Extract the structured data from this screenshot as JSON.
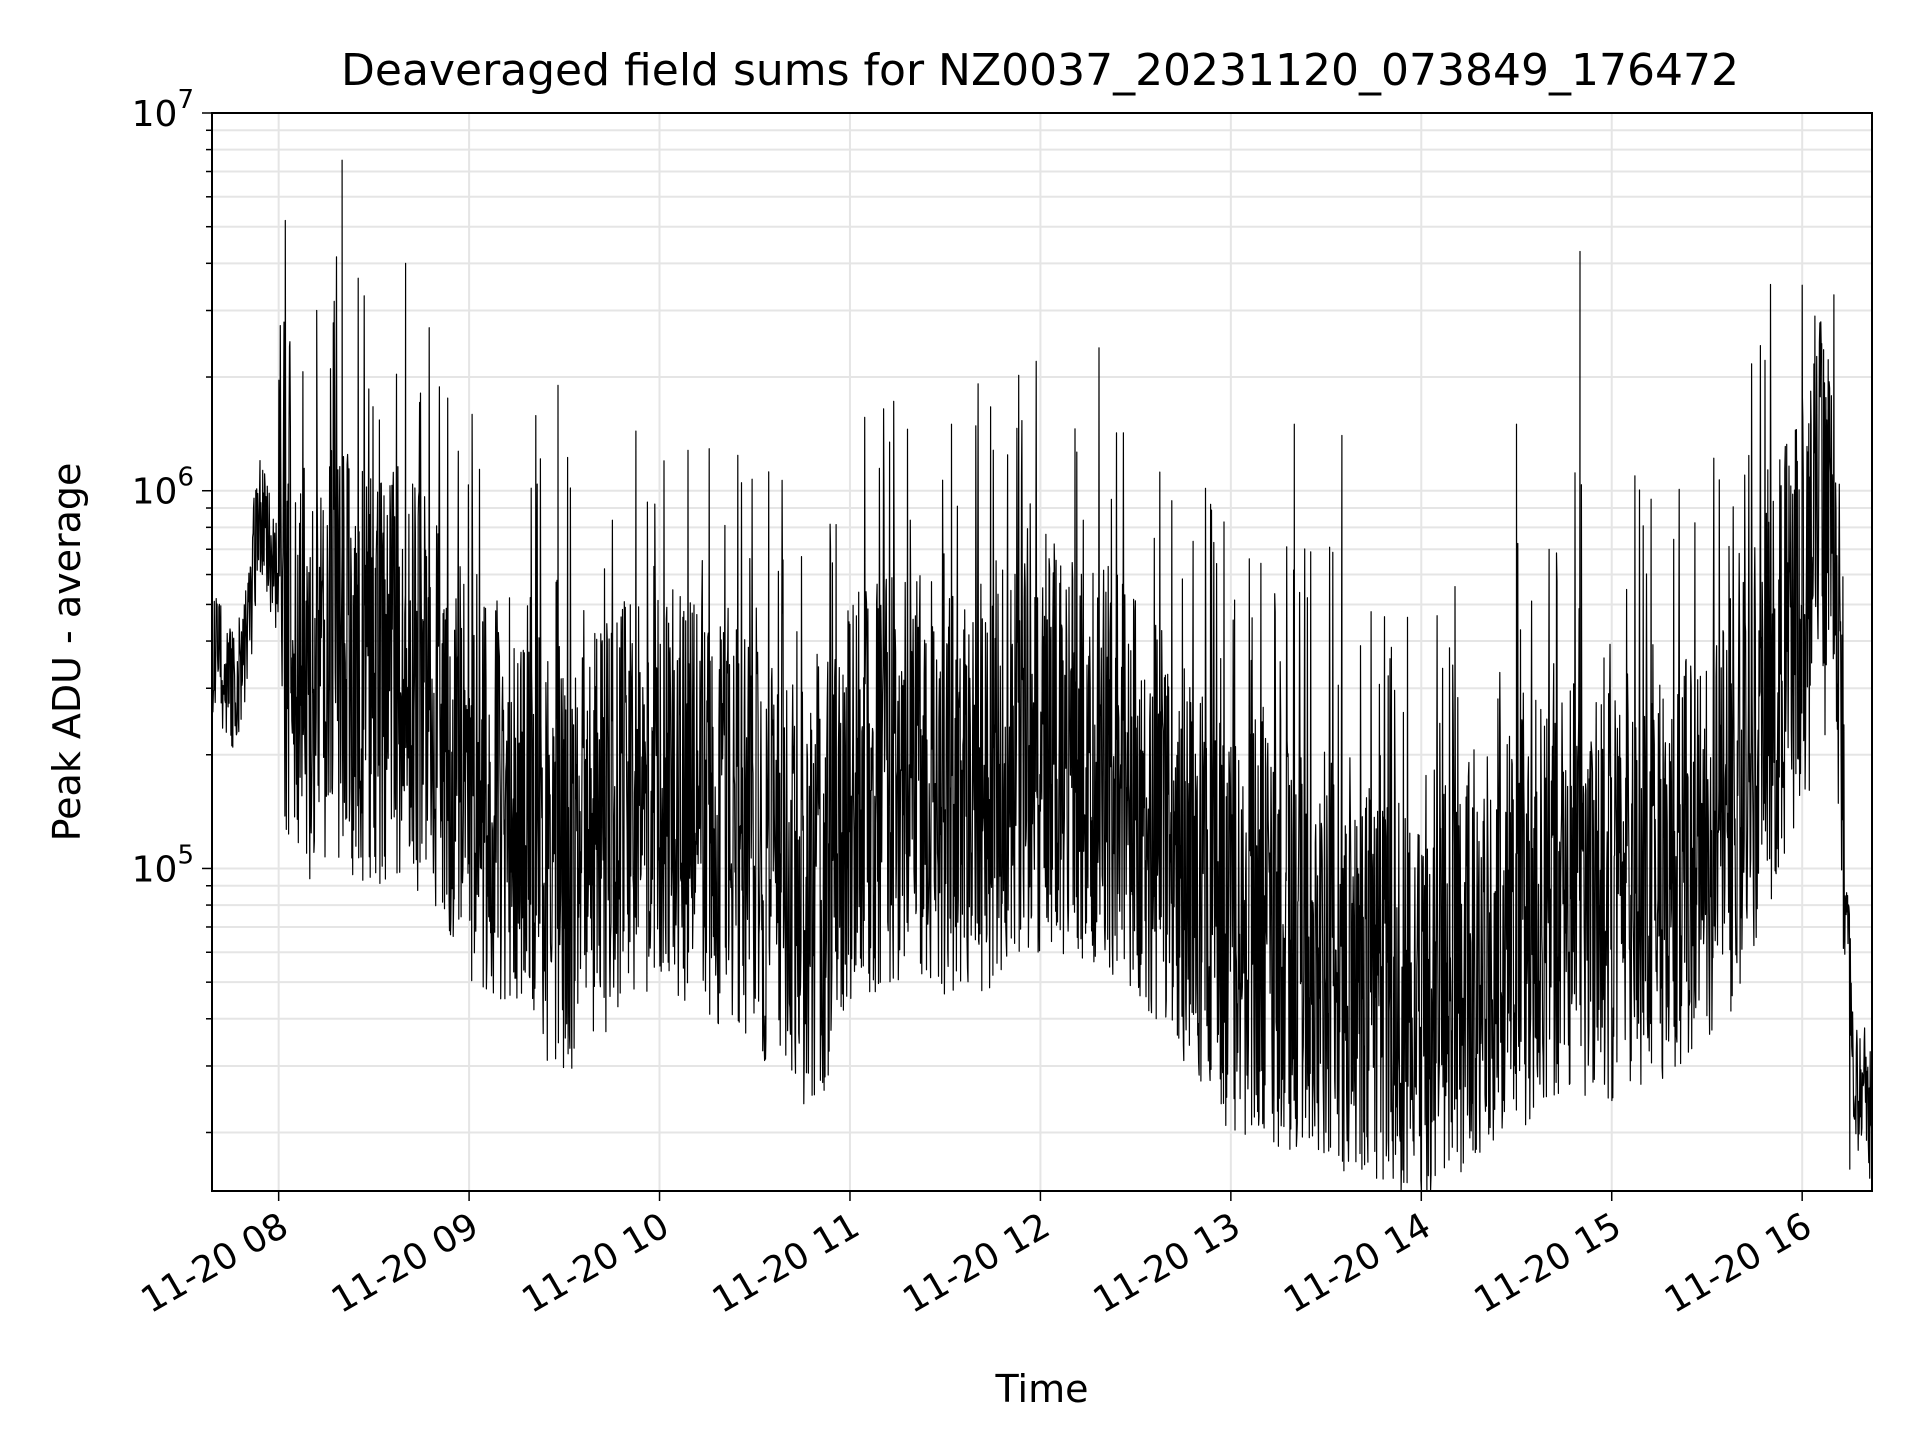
{
  "chart_data": {
    "type": "line",
    "title": "Deaveraged field sums for NZ0037_20231120_073849_176472",
    "xlabel": "Time",
    "ylabel": "Peak ADU - average",
    "y_scale": "log",
    "ylim": [
      14000,
      10000000
    ],
    "xlim": [
      "11-20 07:39",
      "11-20 16:22"
    ],
    "grid": true,
    "line_color": "#000000",
    "x_ticks": [
      "11-20 08",
      "11-20 09",
      "11-20 10",
      "11-20 11",
      "11-20 12",
      "11-20 13",
      "11-20 14",
      "11-20 15",
      "11-20 16"
    ],
    "y_ticks": [
      {
        "base": "10",
        "exp": "5"
      },
      {
        "base": "10",
        "exp": "6"
      },
      {
        "base": "10",
        "exp": "7"
      }
    ],
    "series": [
      {
        "x": [
          "11-20 07:39",
          "11-20 07:45",
          "11-20 07:50",
          "11-20 07:53",
          "11-20 07:55",
          "11-20 08:00",
          "11-20 08:05",
          "11-20 08:10",
          "11-20 08:15",
          "11-20 08:20",
          "11-20 08:30",
          "11-20 08:40",
          "11-20 08:50",
          "11-20 09:00",
          "11-20 09:10",
          "11-20 09:20",
          "11-20 09:28",
          "11-20 09:32",
          "11-20 09:40",
          "11-20 09:50",
          "11-20 10:00",
          "11-20 10:15",
          "11-20 10:30",
          "11-20 10:40",
          "11-20 10:50",
          "11-20 11:00",
          "11-20 11:15",
          "11-20 11:30",
          "11-20 11:45",
          "11-20 12:00",
          "11-20 12:15",
          "11-20 12:30",
          "11-20 12:45",
          "11-20 13:00",
          "11-20 13:15",
          "11-20 13:30",
          "11-20 13:45",
          "11-20 14:00",
          "11-20 14:15",
          "11-20 14:30",
          "11-20 14:45",
          "11-20 15:00",
          "11-20 15:15",
          "11-20 15:30",
          "11-20 15:45",
          "11-20 15:55",
          "11-20 16:00",
          "11-20 16:05",
          "11-20 16:10",
          "11-20 16:14",
          "11-20 16:16",
          "11-20 16:18",
          "11-20 16:20",
          "11-20 16:22"
        ],
        "y": [
          380000,
          300000,
          380000,
          800000,
          900000,
          500000,
          400000,
          300000,
          330000,
          350000,
          300000,
          330000,
          250000,
          180000,
          160000,
          140000,
          90000,
          100000,
          120000,
          150000,
          170000,
          140000,
          110000,
          90000,
          80000,
          150000,
          180000,
          160000,
          170000,
          210000,
          200000,
          160000,
          100000,
          70000,
          65000,
          60000,
          50000,
          45000,
          55000,
          70000,
          90000,
          85000,
          95000,
          110000,
          200000,
          400000,
          450000,
          700000,
          800000,
          100000,
          30000,
          25000,
          28000,
          20000
        ]
      }
    ],
    "spikes": [
      {
        "x": "11-20 08:20",
        "y": 7500000
      },
      {
        "x": "11-20 08:12",
        "y": 3000000
      },
      {
        "x": "11-20 08:40",
        "y": 4000000
      },
      {
        "x": "11-20 09:28",
        "y": 1900000
      },
      {
        "x": "11-20 11:32",
        "y": 1500000
      },
      {
        "x": "11-20 13:20",
        "y": 1500000
      },
      {
        "x": "11-20 13:35",
        "y": 1400000
      },
      {
        "x": "11-20 14:30",
        "y": 1500000
      },
      {
        "x": "11-20 14:50",
        "y": 4300000
      },
      {
        "x": "11-20 16:00",
        "y": 3500000
      },
      {
        "x": "11-20 16:04",
        "y": 2900000
      },
      {
        "x": "11-20 16:10",
        "y": 3300000
      },
      {
        "x": "11-20 16:15",
        "y": 16000
      }
    ]
  }
}
